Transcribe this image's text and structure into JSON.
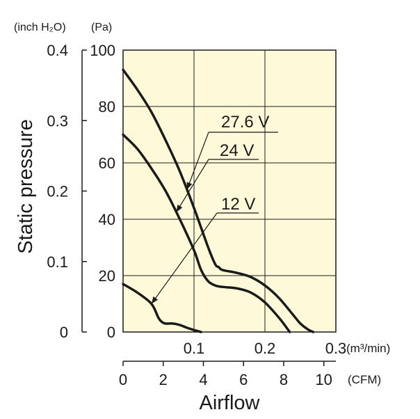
{
  "chart_data": {
    "type": "line",
    "title": "",
    "xlabel": "Airflow",
    "ylabel": "Static pressure",
    "units": {
      "y_left": "(inch H₂O)",
      "y_right": "(Pa)",
      "x_top": "(m³/min)",
      "x_bottom": "(CFM)"
    },
    "x_axis_m3min": {
      "range": [
        0,
        0.3
      ],
      "ticks": [
        0.1,
        0.2,
        0.3
      ],
      "tick_labels": [
        "0.1",
        "0.2",
        "0.3"
      ]
    },
    "x_axis_cfm": {
      "range": [
        0,
        10.6
      ],
      "ticks": [
        0,
        2,
        4,
        6,
        8,
        10
      ],
      "tick_labels": [
        "0",
        "2",
        "4",
        "6",
        "8",
        "10"
      ]
    },
    "y_axis_pa": {
      "range": [
        0,
        100
      ],
      "ticks": [
        0,
        20,
        40,
        60,
        80,
        100
      ],
      "tick_labels": [
        "0",
        "20",
        "40",
        "60",
        "80",
        "100"
      ]
    },
    "y_axis_inch_h2o": {
      "range": [
        0,
        0.4
      ],
      "ticks": [
        0,
        0.1,
        0.2,
        0.3,
        0.4
      ],
      "tick_labels": [
        "0",
        "0.1",
        "0.2",
        "0.3",
        "0.4"
      ]
    },
    "grid": true,
    "background": "#fdf9d9",
    "series": [
      {
        "name": "27.6 V",
        "x": [
          0,
          0.02,
          0.04,
          0.06,
          0.08,
          0.1,
          0.12,
          0.13,
          0.135,
          0.14,
          0.16,
          0.18,
          0.2,
          0.22,
          0.24,
          0.25,
          0.26,
          0.268
        ],
        "y": [
          93,
          86,
          78,
          68,
          57,
          44,
          30,
          24,
          23,
          22,
          21,
          19.5,
          16.5,
          12,
          6,
          3,
          1,
          0
        ],
        "label_anchor_x": 0.09
      },
      {
        "name": "24 V",
        "x": [
          0,
          0.02,
          0.04,
          0.06,
          0.08,
          0.1,
          0.11,
          0.12,
          0.13,
          0.14,
          0.16,
          0.18,
          0.2,
          0.22,
          0.235
        ],
        "y": [
          70,
          65,
          58,
          50,
          40,
          29,
          22,
          18,
          16.5,
          16,
          15.5,
          14,
          10.5,
          5,
          0
        ],
        "label_anchor_x": 0.075
      },
      {
        "name": "12 V",
        "x": [
          0,
          0.02,
          0.04,
          0.05,
          0.055,
          0.06,
          0.07,
          0.08,
          0.09,
          0.1,
          0.11
        ],
        "y": [
          17,
          14,
          10,
          5,
          3.5,
          3,
          3,
          2.5,
          1.5,
          0.7,
          0
        ],
        "label_anchor_x": 0.04
      }
    ]
  }
}
